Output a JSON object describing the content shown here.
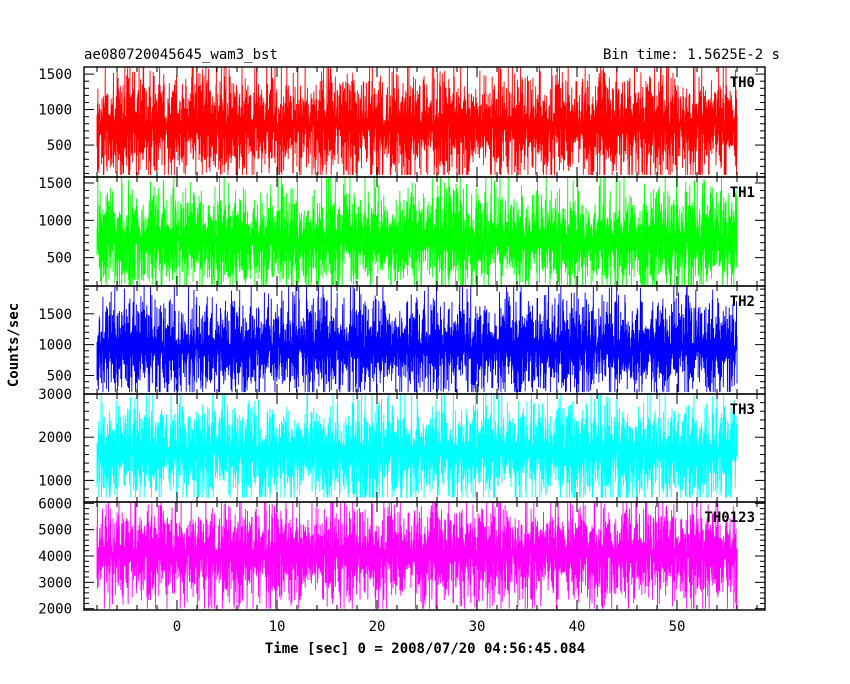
{
  "title_left": "ae080720045645_wam3_bst",
  "title_right": "Bin time: 1.5625E-2 s",
  "xlabel": "Time [sec] 0 = 2008/07/20 04:56:45.084",
  "ylabel": "Counts/sec",
  "chart_data": {
    "type": "line",
    "x_range": [
      -9.3,
      58.8
    ],
    "x_ticks": [
      0,
      10,
      20,
      30,
      40,
      50
    ],
    "x_tick_labels": [
      "0",
      "10",
      "20",
      "30",
      "40",
      "50"
    ],
    "data_x_range": [
      -8.0,
      56.0
    ],
    "bin_time_s": 0.015625,
    "grid": false,
    "panels": [
      {
        "name": "TH0",
        "color": "#ff0000",
        "ylim": [
          50,
          1600
        ],
        "y_ticks": [
          500,
          1000,
          1500
        ],
        "y_tick_labels": [
          "500",
          "1000",
          "1500"
        ],
        "series": {
          "mean": 780,
          "typical_min": 200,
          "typical_max": 1450,
          "floor": 80,
          "ceiling": 1600
        }
      },
      {
        "name": "TH1",
        "color": "#00ff00",
        "ylim": [
          120,
          1580
        ],
        "y_ticks": [
          500,
          1000,
          1500
        ],
        "y_tick_labels": [
          "500",
          "1000",
          "1500"
        ],
        "series": {
          "mean": 740,
          "typical_min": 250,
          "typical_max": 1350,
          "floor": 130,
          "ceiling": 1580
        }
      },
      {
        "name": "TH2",
        "color": "#0000ff",
        "ylim": [
          200,
          1950
        ],
        "y_ticks": [
          500,
          1000,
          1500
        ],
        "y_tick_labels": [
          "500",
          "1000",
          "1500"
        ],
        "series": {
          "mean": 950,
          "typical_min": 380,
          "typical_max": 1700,
          "floor": 230,
          "ceiling": 1950
        }
      },
      {
        "name": "TH3",
        "color": "#00ffff",
        "ylim": [
          500,
          3000
        ],
        "y_ticks": [
          1000,
          2000,
          3000
        ],
        "y_tick_labels": [
          "1000",
          "2000",
          "3000"
        ],
        "series": {
          "mean": 1650,
          "typical_min": 850,
          "typical_max": 2700,
          "floor": 600,
          "ceiling": 3000
        }
      },
      {
        "name": "TH0123",
        "color": "#ff00ff",
        "ylim": [
          1950,
          6050
        ],
        "y_ticks": [
          2000,
          3000,
          4000,
          5000,
          6000
        ],
        "y_tick_labels": [
          "2000",
          "3000",
          "4000",
          "5000",
          "6000"
        ],
        "series": {
          "mean": 4100,
          "typical_min": 2500,
          "typical_max": 5600,
          "floor": 2000,
          "ceiling": 6050
        }
      }
    ]
  }
}
